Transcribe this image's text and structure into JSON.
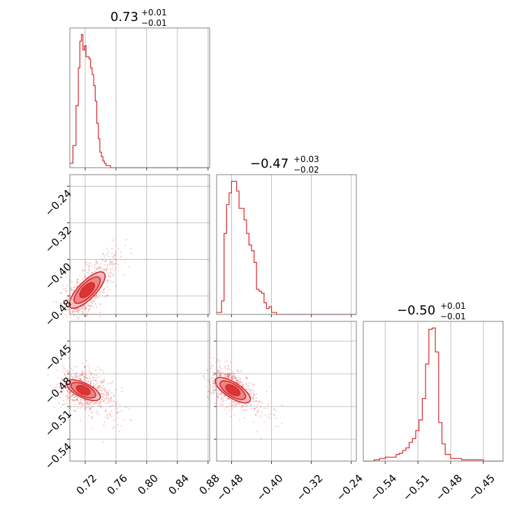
{
  "style": {
    "color": "#d62728",
    "fill_light": "#f4b6b7",
    "fill_mid": "#e87d7e",
    "grid": "#b0b0b0",
    "frame": "#808080"
  },
  "titles": [
    {
      "main": "0.73",
      "sup": "+0.01",
      "sub": "−0.01"
    },
    {
      "main": "−0.47",
      "sup": "+0.03",
      "sub": "−0.02"
    },
    {
      "main": "−0.50",
      "sup": "+0.01",
      "sub": "−0.01"
    }
  ],
  "axes": {
    "p1": {
      "ticks": [
        0.72,
        0.76,
        0.8,
        0.84,
        0.88
      ],
      "labels": [
        "0.72",
        "0.76",
        "0.80",
        "0.84",
        "0.88"
      ]
    },
    "p2": {
      "ticks": [
        -0.48,
        -0.4,
        -0.32,
        -0.24
      ],
      "labels": [
        "−0.48",
        "−0.40",
        "−0.32",
        "−0.24"
      ]
    },
    "p3": {
      "ticks": [
        -0.54,
        -0.51,
        -0.48,
        -0.45
      ],
      "labels": [
        "−0.54",
        "−0.51",
        "−0.48",
        "−0.45"
      ]
    }
  },
  "chart_data": [
    {
      "type": "line",
      "panel": "histogram p1",
      "x_range": [
        0.7,
        0.882
      ],
      "x": [
        0.7,
        0.704,
        0.708,
        0.711,
        0.713,
        0.715,
        0.717,
        0.719,
        0.721,
        0.723,
        0.725,
        0.727,
        0.729,
        0.731,
        0.733,
        0.735,
        0.737,
        0.739,
        0.741,
        0.743,
        0.745,
        0.747,
        0.75,
        0.753,
        0.756,
        0.76,
        0.764,
        0.77,
        0.8,
        0.84,
        0.882
      ],
      "values": [
        2,
        10,
        28,
        45,
        57,
        60,
        53,
        55,
        50,
        50,
        49,
        45,
        42,
        37,
        30,
        20,
        13,
        7,
        5,
        3,
        2,
        1,
        1,
        0,
        0,
        0,
        0,
        0,
        0,
        0,
        0
      ]
    },
    {
      "type": "line",
      "panel": "histogram p2",
      "x_range": [
        -0.51,
        -0.23
      ],
      "x": [
        -0.51,
        -0.5,
        -0.495,
        -0.49,
        -0.485,
        -0.48,
        -0.475,
        -0.47,
        -0.465,
        -0.46,
        -0.455,
        -0.45,
        -0.445,
        -0.44,
        -0.435,
        -0.43,
        -0.425,
        -0.42,
        -0.415,
        -0.41,
        -0.405,
        -0.4,
        -0.39,
        -0.37,
        -0.32,
        -0.24,
        -0.23
      ],
      "values": [
        1,
        7,
        42,
        57,
        63,
        69,
        69,
        64,
        55,
        55,
        49,
        42,
        36,
        33,
        27,
        13,
        12,
        11,
        6,
        3,
        4,
        1,
        0,
        0,
        0,
        0,
        0
      ]
    },
    {
      "type": "line",
      "panel": "histogram p3",
      "x_range": [
        -0.56,
        -0.432
      ],
      "x": [
        -0.56,
        -0.55,
        -0.545,
        -0.54,
        -0.535,
        -0.53,
        -0.527,
        -0.524,
        -0.521,
        -0.518,
        -0.515,
        -0.512,
        -0.509,
        -0.506,
        -0.503,
        -0.5,
        -0.497,
        -0.494,
        -0.491,
        -0.488,
        -0.485,
        -0.48,
        -0.47,
        -0.45,
        -0.432
      ],
      "values": [
        0,
        1,
        2,
        3,
        3,
        5,
        6,
        8,
        10,
        14,
        17,
        23,
        31,
        47,
        73,
        99,
        100,
        82,
        29,
        13,
        5,
        2,
        1,
        0,
        0
      ]
    },
    {
      "type": "scatter",
      "panel": "p2 vs p1",
      "x_range": [
        0.7,
        0.882
      ],
      "y_range": [
        -0.52,
        -0.215
      ],
      "x": [
        0.705,
        0.71,
        0.715,
        0.72,
        0.725,
        0.73,
        0.735,
        0.74,
        0.745,
        0.75,
        0.755,
        0.76,
        0.765,
        0.77
      ],
      "values": [
        -0.497,
        -0.492,
        -0.484,
        -0.476,
        -0.466,
        -0.455,
        -0.447,
        -0.437,
        -0.428,
        -0.42,
        -0.412,
        -0.402,
        -0.394,
        -0.384
      ]
    },
    {
      "type": "scatter",
      "panel": "p3 vs p1",
      "x_range": [
        0.7,
        0.882
      ],
      "y_range": [
        -0.56,
        -0.432
      ],
      "x": [
        0.7,
        0.705,
        0.71,
        0.715,
        0.72,
        0.725,
        0.73,
        0.735,
        0.74,
        0.745,
        0.75,
        0.755,
        0.76,
        0.765
      ],
      "values": [
        -0.489,
        -0.491,
        -0.492,
        -0.493,
        -0.495,
        -0.497,
        -0.499,
        -0.501,
        -0.503,
        -0.505,
        -0.509,
        -0.513,
        -0.517,
        -0.523
      ]
    },
    {
      "type": "scatter",
      "panel": "p3 vs p2",
      "x_range": [
        -0.51,
        -0.23
      ],
      "y_range": [
        -0.56,
        -0.432
      ],
      "x": [
        -0.505,
        -0.5,
        -0.495,
        -0.49,
        -0.485,
        -0.48,
        -0.475,
        -0.47,
        -0.46,
        -0.45,
        -0.44,
        -0.43,
        -0.42,
        -0.41,
        -0.4,
        -0.39
      ],
      "values": [
        -0.487,
        -0.488,
        -0.489,
        -0.49,
        -0.492,
        -0.494,
        -0.496,
        -0.498,
        -0.5,
        -0.503,
        -0.506,
        -0.509,
        -0.513,
        -0.517,
        -0.522,
        -0.528
      ]
    }
  ]
}
